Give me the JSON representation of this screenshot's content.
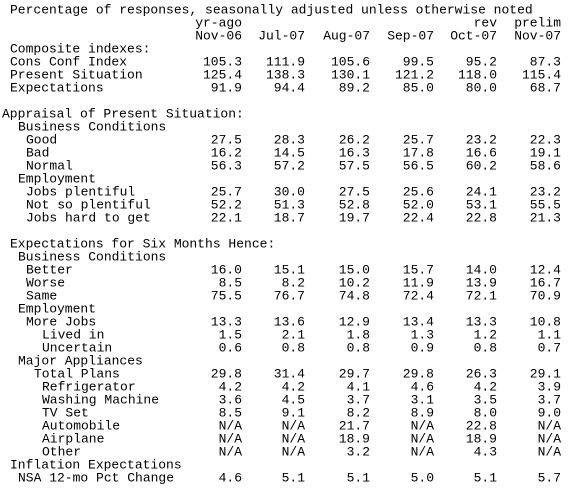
{
  "header": {
    "title": "Percentage of responses, seasonally adjusted unless otherwise noted",
    "column_notes": [
      "yr-ago",
      "rev",
      "prelim"
    ],
    "columns": [
      "Nov-06",
      "Jul-07",
      "Aug-07",
      "Sep-07",
      "Oct-07",
      "Nov-07"
    ]
  },
  "table": {
    "rows": [
      {
        "label": "Composite indexes:"
      },
      {
        "label": "Cons Conf Index",
        "values": [
          "105.3",
          "111.9",
          "105.6",
          "99.5",
          "95.2",
          "87.3"
        ]
      },
      {
        "label": "Present Situation",
        "values": [
          "125.4",
          "138.3",
          "130.1",
          "121.2",
          "118.0",
          "115.4"
        ]
      },
      {
        "label": "Expectations",
        "values": [
          "91.9",
          "94.4",
          "89.2",
          "85.0",
          "80.0",
          "68.7"
        ]
      },
      {
        "label": "Appraisal of Present Situation:"
      },
      {
        "label": "Business Conditions"
      },
      {
        "label": "Good",
        "values": [
          "27.5",
          "28.3",
          "26.2",
          "25.7",
          "23.2",
          "22.3"
        ]
      },
      {
        "label": "Bad",
        "values": [
          "16.2",
          "14.5",
          "16.3",
          "17.8",
          "16.6",
          "19.1"
        ]
      },
      {
        "label": "Normal",
        "values": [
          "56.3",
          "57.2",
          "57.5",
          "56.5",
          "60.2",
          "58.6"
        ]
      },
      {
        "label": "Employment"
      },
      {
        "label": "Jobs plentiful",
        "values": [
          "25.7",
          "30.0",
          "27.5",
          "25.6",
          "24.1",
          "23.2"
        ]
      },
      {
        "label": "Not so plentiful",
        "values": [
          "52.2",
          "51.3",
          "52.8",
          "52.0",
          "53.1",
          "55.5"
        ]
      },
      {
        "label": "Jobs hard to get",
        "values": [
          "22.1",
          "18.7",
          "19.7",
          "22.4",
          "22.8",
          "21.3"
        ]
      },
      {
        "label": "Expectations for Six Months Hence:"
      },
      {
        "label": "Business Conditions"
      },
      {
        "label": "Better",
        "values": [
          "16.0",
          "15.1",
          "15.0",
          "15.7",
          "14.0",
          "12.4"
        ]
      },
      {
        "label": "Worse",
        "values": [
          "8.5",
          "8.2",
          "10.2",
          "11.9",
          "13.9",
          "16.7"
        ]
      },
      {
        "label": "Same",
        "values": [
          "75.5",
          "76.7",
          "74.8",
          "72.4",
          "72.1",
          "70.9"
        ]
      },
      {
        "label": "Employment"
      },
      {
        "label": "More Jobs",
        "values": [
          "13.3",
          "13.6",
          "12.9",
          "13.4",
          "13.3",
          "10.8"
        ]
      },
      {
        "label": "Lived in",
        "values": [
          "1.5",
          "2.1",
          "1.8",
          "1.3",
          "1.2",
          "1.1"
        ]
      },
      {
        "label": "Uncertain",
        "values": [
          "0.6",
          "0.8",
          "0.8",
          "0.9",
          "0.8",
          "0.7"
        ]
      },
      {
        "label": "Major Appliances"
      },
      {
        "label": "Total Plans",
        "values": [
          "29.8",
          "31.4",
          "29.7",
          "29.8",
          "26.3",
          "29.1"
        ]
      },
      {
        "label": "Refrigerator",
        "values": [
          "4.2",
          "4.2",
          "4.1",
          "4.6",
          "4.2",
          "3.9"
        ]
      },
      {
        "label": "Washing Machine",
        "values": [
          "3.6",
          "4.5",
          "3.7",
          "3.1",
          "3.5",
          "3.7"
        ]
      },
      {
        "label": "TV Set",
        "values": [
          "8.5",
          "9.1",
          "8.2",
          "8.9",
          "8.0",
          "9.0"
        ]
      },
      {
        "label": "Automobile",
        "values": [
          "N/A",
          "N/A",
          "21.7",
          "N/A",
          "22.8",
          "N/A"
        ]
      },
      {
        "label": "Airplane",
        "values": [
          "N/A",
          "N/A",
          "18.9",
          "N/A",
          "18.9",
          "N/A"
        ]
      },
      {
        "label": "Other",
        "values": [
          "N/A",
          "N/A",
          "3.2",
          "N/A",
          "4.3",
          "N/A"
        ]
      },
      {
        "label": "Inflation Expectations"
      },
      {
        "label": "NSA 12-mo Pct Change",
        "values": [
          "4.6",
          "5.1",
          "5.1",
          "5.0",
          "5.1",
          "5.7"
        ]
      }
    ]
  }
}
